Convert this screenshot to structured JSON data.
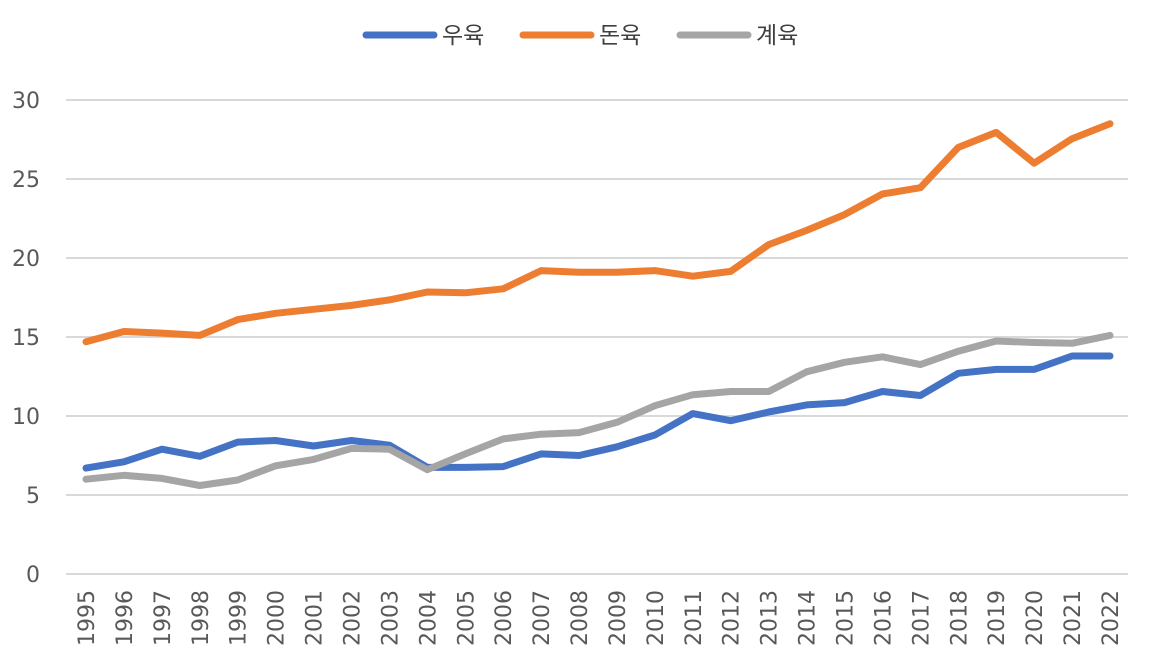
{
  "chart_data": {
    "type": "line",
    "title": "",
    "xlabel": "",
    "ylabel": "",
    "ylim": [
      0,
      30
    ],
    "yticks": [
      0,
      5,
      10,
      15,
      20,
      25,
      30
    ],
    "grid": true,
    "legend_position": "top",
    "categories": [
      "1995",
      "1996",
      "1997",
      "1998",
      "1999",
      "2000",
      "2001",
      "2002",
      "2003",
      "2004",
      "2005",
      "2006",
      "2007",
      "2008",
      "2009",
      "2010",
      "2011",
      "2012",
      "2013",
      "2014",
      "2015",
      "2016",
      "2017",
      "2018",
      "2019",
      "2020",
      "2021",
      "2022"
    ],
    "series": [
      {
        "name": "우육",
        "color": "#4472c4",
        "values": [
          6.7,
          7.1,
          7.9,
          7.45,
          8.35,
          8.45,
          8.1,
          8.45,
          8.15,
          6.75,
          6.75,
          6.8,
          7.6,
          7.5,
          8.05,
          8.8,
          10.15,
          9.7,
          10.25,
          10.7,
          10.85,
          11.55,
          11.3,
          12.7,
          12.95,
          12.95,
          13.8,
          13.8
        ]
      },
      {
        "name": "돈육",
        "color": "#ed7d31",
        "values": [
          14.7,
          15.35,
          15.25,
          15.1,
          16.1,
          16.5,
          16.75,
          17.0,
          17.35,
          17.85,
          17.8,
          18.05,
          19.2,
          19.1,
          19.1,
          19.2,
          18.85,
          19.15,
          20.85,
          21.75,
          22.75,
          24.05,
          24.45,
          27.0,
          27.95,
          26.0,
          27.55,
          28.5
        ]
      },
      {
        "name": "계육",
        "color": "#a5a5a5",
        "values": [
          6.0,
          6.25,
          6.05,
          5.6,
          5.95,
          6.85,
          7.25,
          7.95,
          7.9,
          6.6,
          7.6,
          8.55,
          8.85,
          8.95,
          9.6,
          10.65,
          11.35,
          11.55,
          11.55,
          12.8,
          13.4,
          13.75,
          13.25,
          14.1,
          14.75,
          14.65,
          14.6,
          15.1
        ]
      }
    ]
  }
}
